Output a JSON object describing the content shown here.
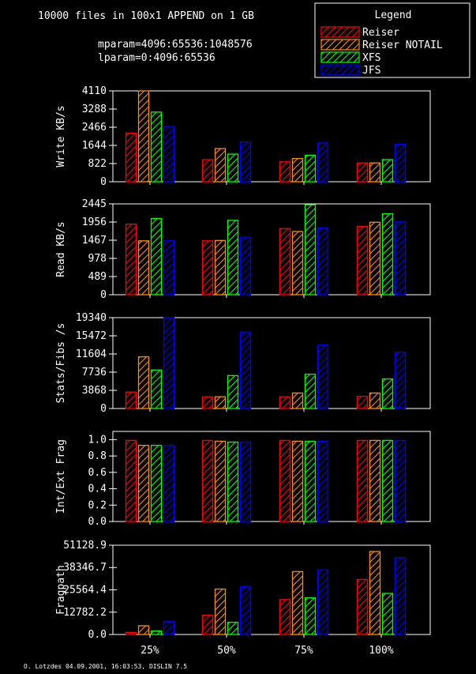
{
  "header": {
    "title": "10000 files in 100x1 APPEND on 1 GB",
    "mparam": "mparam=4096:65536:1048576",
    "lparam": "lparam=0:4096:65536"
  },
  "legend": {
    "title": "Legend",
    "items": [
      {
        "label": "Reiser",
        "color": "#ff0000"
      },
      {
        "label": "Reiser NOTAIL",
        "color": "#ff8c00"
      },
      {
        "label": "XFS",
        "color": "#00ff00"
      },
      {
        "label": "JFS",
        "color": "#0000ff"
      }
    ]
  },
  "footer": "O. Lotzdes 04.09.2001, 16:03:53, DISLIN 7.5",
  "chart_data": [
    {
      "type": "bar",
      "ylabel": "Write KB/s",
      "ylim": [
        0,
        4110
      ],
      "yticks": [
        "0",
        "822",
        "1644",
        "2466",
        "3288",
        "4110"
      ],
      "categories": [
        "25%",
        "50%",
        "75%",
        "100%"
      ],
      "series": [
        {
          "name": "Reiser",
          "values": [
            2200,
            1000,
            900,
            850
          ]
        },
        {
          "name": "Reiser NOTAIL",
          "values": [
            4110,
            1500,
            1050,
            850
          ]
        },
        {
          "name": "XFS",
          "values": [
            3150,
            1250,
            1200,
            1000
          ]
        },
        {
          "name": "JFS",
          "values": [
            2500,
            1800,
            1750,
            1700
          ]
        }
      ]
    },
    {
      "type": "bar",
      "ylabel": "Read KB/s",
      "ylim": [
        0,
        2445
      ],
      "yticks": [
        "0",
        "489",
        "978",
        "1467",
        "1956",
        "2445"
      ],
      "categories": [
        "25%",
        "50%",
        "75%",
        "100%"
      ],
      "series": [
        {
          "name": "Reiser",
          "values": [
            1900,
            1450,
            1780,
            1840
          ]
        },
        {
          "name": "Reiser NOTAIL",
          "values": [
            1450,
            1460,
            1700,
            1950
          ]
        },
        {
          "name": "XFS",
          "values": [
            2050,
            2000,
            2420,
            2180
          ]
        },
        {
          "name": "JFS",
          "values": [
            1450,
            1550,
            1800,
            1960
          ]
        }
      ]
    },
    {
      "type": "bar",
      "ylabel": "Stats/Fibs /s",
      "ylim": [
        0,
        19340
      ],
      "yticks": [
        "0",
        "3868",
        "7736",
        "11604",
        "15472",
        "19340"
      ],
      "categories": [
        "25%",
        "50%",
        "75%",
        "100%"
      ],
      "series": [
        {
          "name": "Reiser",
          "values": [
            3500,
            2500,
            2500,
            2600
          ]
        },
        {
          "name": "Reiser NOTAIL",
          "values": [
            11000,
            2500,
            3300,
            3300
          ]
        },
        {
          "name": "XFS",
          "values": [
            8200,
            7000,
            7300,
            6300
          ]
        },
        {
          "name": "JFS",
          "values": [
            19340,
            16300,
            13500,
            12000
          ]
        }
      ]
    },
    {
      "type": "bar",
      "ylabel": "Int/Ext Frag",
      "ylim": [
        0,
        1.1
      ],
      "yticks": [
        "0.0",
        "0.2",
        "0.4",
        "0.6",
        "0.8",
        "1.0"
      ],
      "categories": [
        "25%",
        "50%",
        "75%",
        "100%"
      ],
      "series": [
        {
          "name": "Reiser",
          "values": [
            0.99,
            0.99,
            0.99,
            0.99
          ]
        },
        {
          "name": "Reiser NOTAIL",
          "values": [
            0.93,
            0.98,
            0.98,
            0.99
          ]
        },
        {
          "name": "XFS",
          "values": [
            0.93,
            0.97,
            0.98,
            0.99
          ]
        },
        {
          "name": "JFS",
          "values": [
            0.93,
            0.97,
            0.98,
            0.99
          ]
        }
      ]
    },
    {
      "type": "bar",
      "ylabel": "Fragpath",
      "ylim": [
        0,
        51128.9
      ],
      "yticks": [
        "0.0",
        "12782.2",
        "25564.4",
        "38346.7",
        "51128.9"
      ],
      "categories": [
        "25%",
        "50%",
        "75%",
        "100%"
      ],
      "series": [
        {
          "name": "Reiser",
          "values": [
            1200,
            11000,
            20000,
            31500
          ]
        },
        {
          "name": "Reiser NOTAIL",
          "values": [
            5000,
            26000,
            36000,
            47500
          ]
        },
        {
          "name": "XFS",
          "values": [
            2000,
            7000,
            21000,
            23500
          ]
        },
        {
          "name": "JFS",
          "values": [
            7500,
            27500,
            37000,
            44000
          ]
        }
      ]
    }
  ]
}
